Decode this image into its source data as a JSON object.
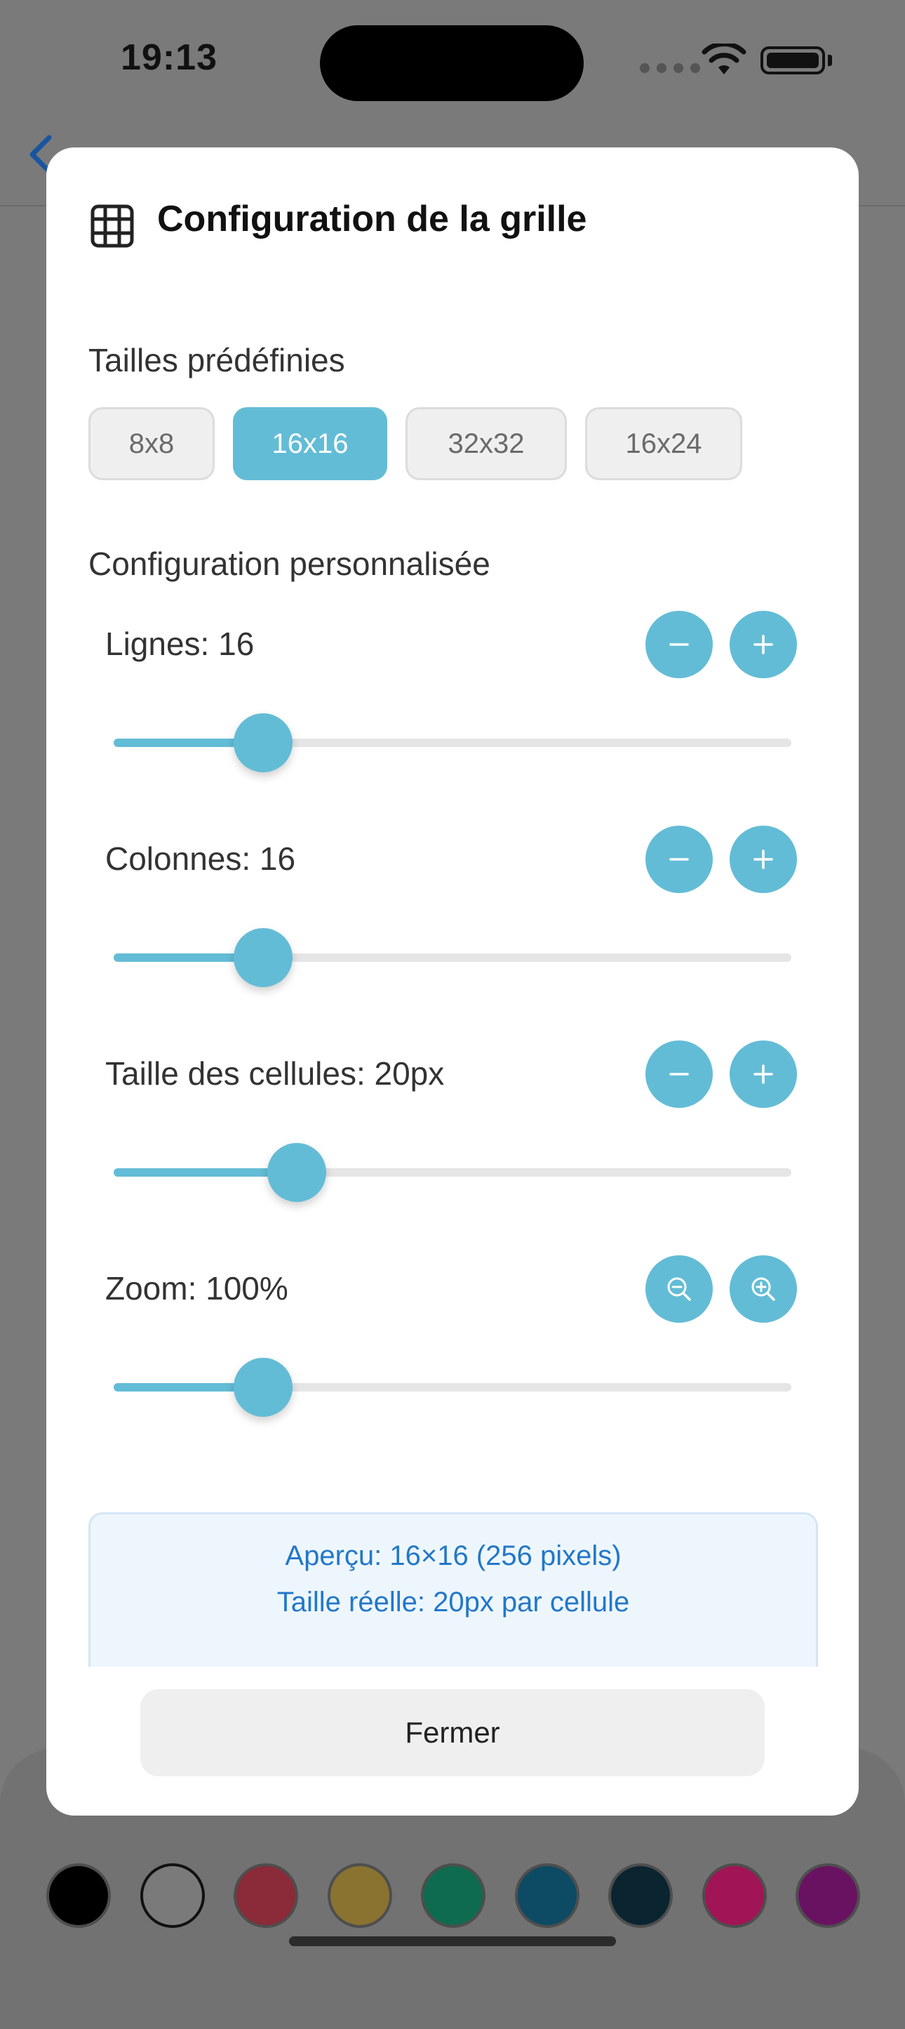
{
  "status": {
    "time": "19:13"
  },
  "modal": {
    "title": "Configuration de la grille",
    "presets_label": "Tailles prédéfinies",
    "presets": [
      {
        "label": "8x8",
        "active": false
      },
      {
        "label": "16x16",
        "active": true
      },
      {
        "label": "32x32",
        "active": false
      },
      {
        "label": "16x24",
        "active": false
      }
    ],
    "custom_label": "Configuration personnalisée",
    "controls": [
      {
        "label": "Lignes: 16",
        "decrement_icon": "minus-icon",
        "increment_icon": "plus-icon",
        "slider_fraction": 0.22
      },
      {
        "label": "Colonnes: 16",
        "decrement_icon": "minus-icon",
        "increment_icon": "plus-icon",
        "slider_fraction": 0.22
      },
      {
        "label": "Taille des cellules: 20px",
        "decrement_icon": "minus-icon",
        "increment_icon": "plus-icon",
        "slider_fraction": 0.27
      },
      {
        "label": "Zoom: 100%",
        "decrement_icon": "zoom-out-icon",
        "increment_icon": "zoom-in-icon",
        "slider_fraction": 0.22
      }
    ],
    "preview": {
      "line1": "Aperçu: 16×16 (256 pixels)",
      "line2": "Taille réelle: 20px par cellule"
    },
    "close_label": "Fermer"
  },
  "palette": {
    "colors": [
      "#000000",
      "#ffffff",
      "#8b2a38",
      "#8a7330",
      "#0f6b50",
      "#0d4a64",
      "#0a2530",
      "#a11456",
      "#6a1262"
    ]
  },
  "colors": {
    "accent": "#63bcd6",
    "preview_text": "#2278c7"
  }
}
